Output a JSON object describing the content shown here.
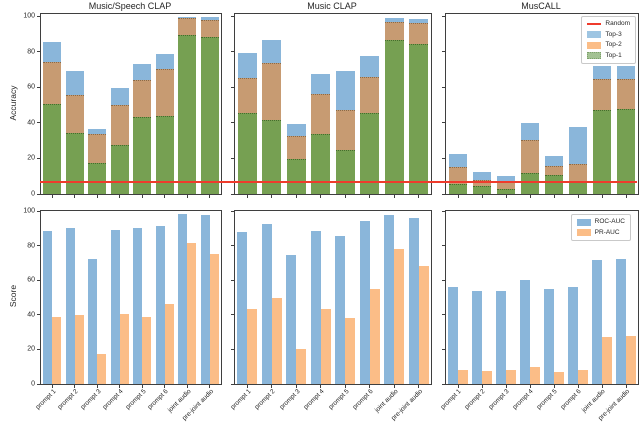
{
  "figure": {
    "ylabel_top": "Accuracy",
    "ylabel_bottom": "Score",
    "yticks": [
      0,
      20,
      40,
      60,
      80,
      100
    ],
    "legend_accuracy": [
      "Random",
      "Top-3",
      "Top-2",
      "Top-1"
    ],
    "legend_auc": [
      "ROC-AUC",
      "PR-AUC"
    ],
    "colors": {
      "top3_bar": "#8ab6da",
      "top2_bar": "#c79b72",
      "top1_bar": "#76a052",
      "roc_bar": "#8ab6da",
      "pr_bar": "#fbbd87",
      "legend_top3": "#9ec5e2",
      "legend_top2": "#fbbd87",
      "legend_top1": "#a3c293",
      "random_line": "#ef3b2c"
    }
  },
  "chart_data": [
    {
      "type": "bar",
      "subtype": "overlay",
      "title": "Music/Speech CLAP",
      "ylabel": "Accuracy",
      "ylim": [
        0,
        100
      ],
      "y_max": 101.4,
      "yticklabels": true,
      "xticklabels": false,
      "random_baseline": 6.7,
      "note": "series values are cumulative accuracy tops (Top-1 <= Top-2 <= Top-3)",
      "categories": [
        "prompt 1",
        "prompt 2",
        "prompt 3",
        "prompt 4",
        "prompt 5",
        "prompt 6",
        "joint audio",
        "pre-joint audio"
      ],
      "series": [
        {
          "name": "Top-3",
          "values": [
            85.5,
            69.5,
            36.5,
            60,
            73.5,
            79,
            99.5,
            99.5
          ]
        },
        {
          "name": "Top-2",
          "values": [
            74,
            55,
            33,
            49.5,
            63.5,
            70,
            98.5,
            97.5
          ]
        },
        {
          "name": "Top-1",
          "values": [
            50,
            34,
            17,
            27,
            43,
            43.5,
            89,
            88
          ]
        }
      ]
    },
    {
      "type": "bar",
      "subtype": "overlay",
      "title": "Music CLAP",
      "ylim": [
        0,
        100
      ],
      "y_max": 101.4,
      "yticklabels": false,
      "xticklabels": false,
      "random_baseline": 6.7,
      "categories": [
        "prompt 1",
        "prompt 2",
        "prompt 3",
        "prompt 4",
        "prompt 5",
        "prompt 6",
        "joint audio",
        "pre-joint audio"
      ],
      "series": [
        {
          "name": "Top-3",
          "values": [
            79.5,
            86.5,
            39.5,
            67.5,
            69.5,
            77.5,
            99,
            98.5
          ]
        },
        {
          "name": "Top-2",
          "values": [
            65,
            73,
            32,
            56,
            46.5,
            65.5,
            96.5,
            96
          ]
        },
        {
          "name": "Top-1",
          "values": [
            45,
            41,
            19,
            33.5,
            24,
            45,
            86,
            84
          ]
        }
      ]
    },
    {
      "type": "bar",
      "subtype": "overlay",
      "title": "MusCALL",
      "ylim": [
        0,
        100
      ],
      "y_max": 101.4,
      "yticklabels": false,
      "xticklabels": false,
      "random_baseline": 6.7,
      "legend": [
        "Random",
        "Top-3",
        "Top-2",
        "Top-1"
      ],
      "legend_position": "upper right",
      "categories": [
        "prompt 1",
        "prompt 2",
        "prompt 3",
        "prompt 4",
        "prompt 5",
        "prompt 6",
        "joint audio",
        "pre-joint audio"
      ],
      "series": [
        {
          "name": "Top-3",
          "values": [
            22.5,
            12.5,
            10,
            40,
            21.5,
            37.5,
            72,
            72
          ]
        },
        {
          "name": "Top-2",
          "values": [
            14.5,
            7.5,
            7,
            30,
            15.5,
            16.5,
            64,
            64
          ]
        },
        {
          "name": "Top-1",
          "values": [
            5,
            4,
            2.5,
            11,
            10,
            6,
            47,
            47.5
          ]
        }
      ]
    },
    {
      "type": "bar",
      "subtype": "grouped",
      "title": "",
      "ylabel": "Score",
      "ylim": [
        0,
        100
      ],
      "y_max": 100,
      "yticklabels": true,
      "xticklabels": true,
      "categories": [
        "prompt 1",
        "prompt 2",
        "prompt 3",
        "prompt 4",
        "prompt 5",
        "prompt 6",
        "joint audio",
        "pre-joint audio"
      ],
      "series": [
        {
          "name": "ROC-AUC",
          "values": [
            88.5,
            90,
            72.5,
            89,
            90,
            91.5,
            98.5,
            97.5
          ]
        },
        {
          "name": "PR-AUC",
          "values": [
            38.5,
            40,
            17.5,
            40.5,
            38.5,
            46,
            81.5,
            75
          ]
        }
      ]
    },
    {
      "type": "bar",
      "subtype": "grouped",
      "title": "",
      "ylim": [
        0,
        100
      ],
      "y_max": 100,
      "yticklabels": false,
      "xticklabels": true,
      "categories": [
        "prompt 1",
        "prompt 2",
        "prompt 3",
        "prompt 4",
        "prompt 5",
        "prompt 6",
        "joint audio",
        "pre-joint audio"
      ],
      "series": [
        {
          "name": "ROC-AUC",
          "values": [
            88,
            92.5,
            74.5,
            88.5,
            85.5,
            94,
            97.5,
            96
          ]
        },
        {
          "name": "PR-AUC",
          "values": [
            43.5,
            49.5,
            20,
            43.5,
            38,
            55,
            78,
            68.5
          ]
        }
      ]
    },
    {
      "type": "bar",
      "subtype": "grouped",
      "title": "",
      "ylim": [
        0,
        100
      ],
      "y_max": 100,
      "yticklabels": false,
      "xticklabels": true,
      "legend": [
        "ROC-AUC",
        "PR-AUC"
      ],
      "legend_position": "upper right",
      "categories": [
        "prompt 1",
        "prompt 2",
        "prompt 3",
        "prompt 4",
        "prompt 5",
        "prompt 6",
        "joint audio",
        "pre-joint audio"
      ],
      "series": [
        {
          "name": "ROC-AUC",
          "values": [
            56,
            54,
            54,
            60,
            55,
            56,
            71.5,
            72.5
          ]
        },
        {
          "name": "PR-AUC",
          "values": [
            8,
            7.5,
            8,
            10,
            7,
            8,
            27,
            27.5
          ]
        }
      ]
    }
  ]
}
